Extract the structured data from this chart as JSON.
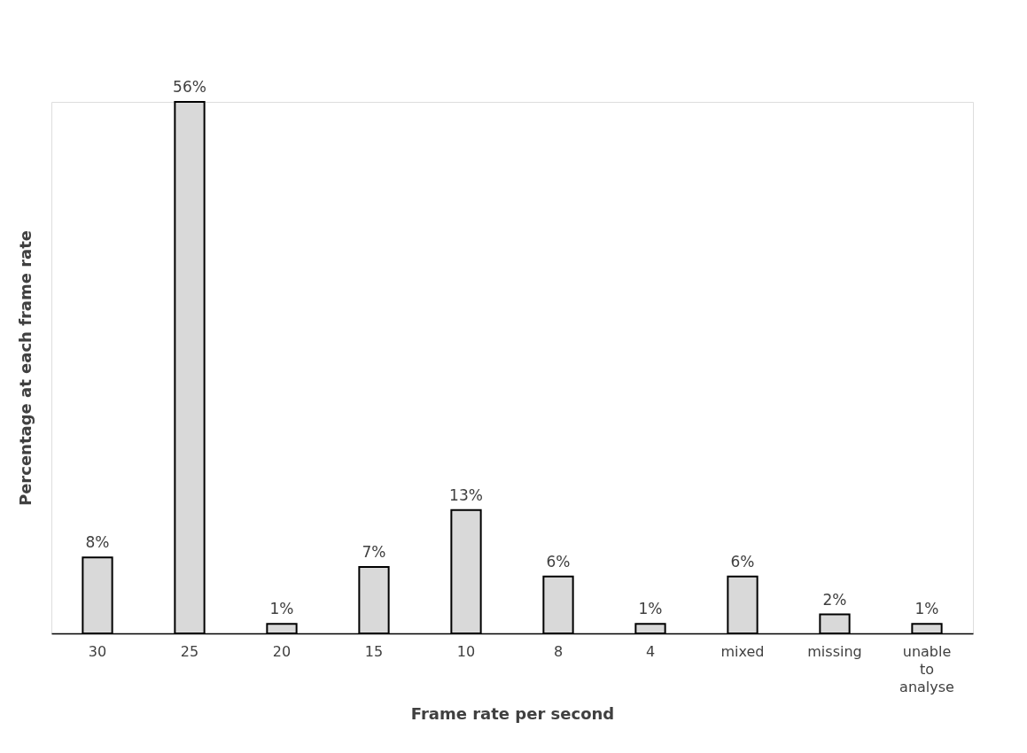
{
  "chart_data": {
    "type": "bar",
    "xlabel": "Frame rate per second",
    "ylabel": "Percentage at each frame rate",
    "categories": [
      "30",
      "25",
      "20",
      "15",
      "10",
      "8",
      "4",
      "mixed",
      "missing",
      "unable to analyse"
    ],
    "values": [
      8,
      56,
      1,
      7,
      13,
      6,
      1,
      6,
      2,
      1
    ],
    "value_labels": [
      "8%",
      "56%",
      "1%",
      "7%",
      "13%",
      "6%",
      "1%",
      "6%",
      "2%",
      "1%"
    ],
    "color": "#d9d9d9",
    "grid": false,
    "tick_labels": "x"
  }
}
